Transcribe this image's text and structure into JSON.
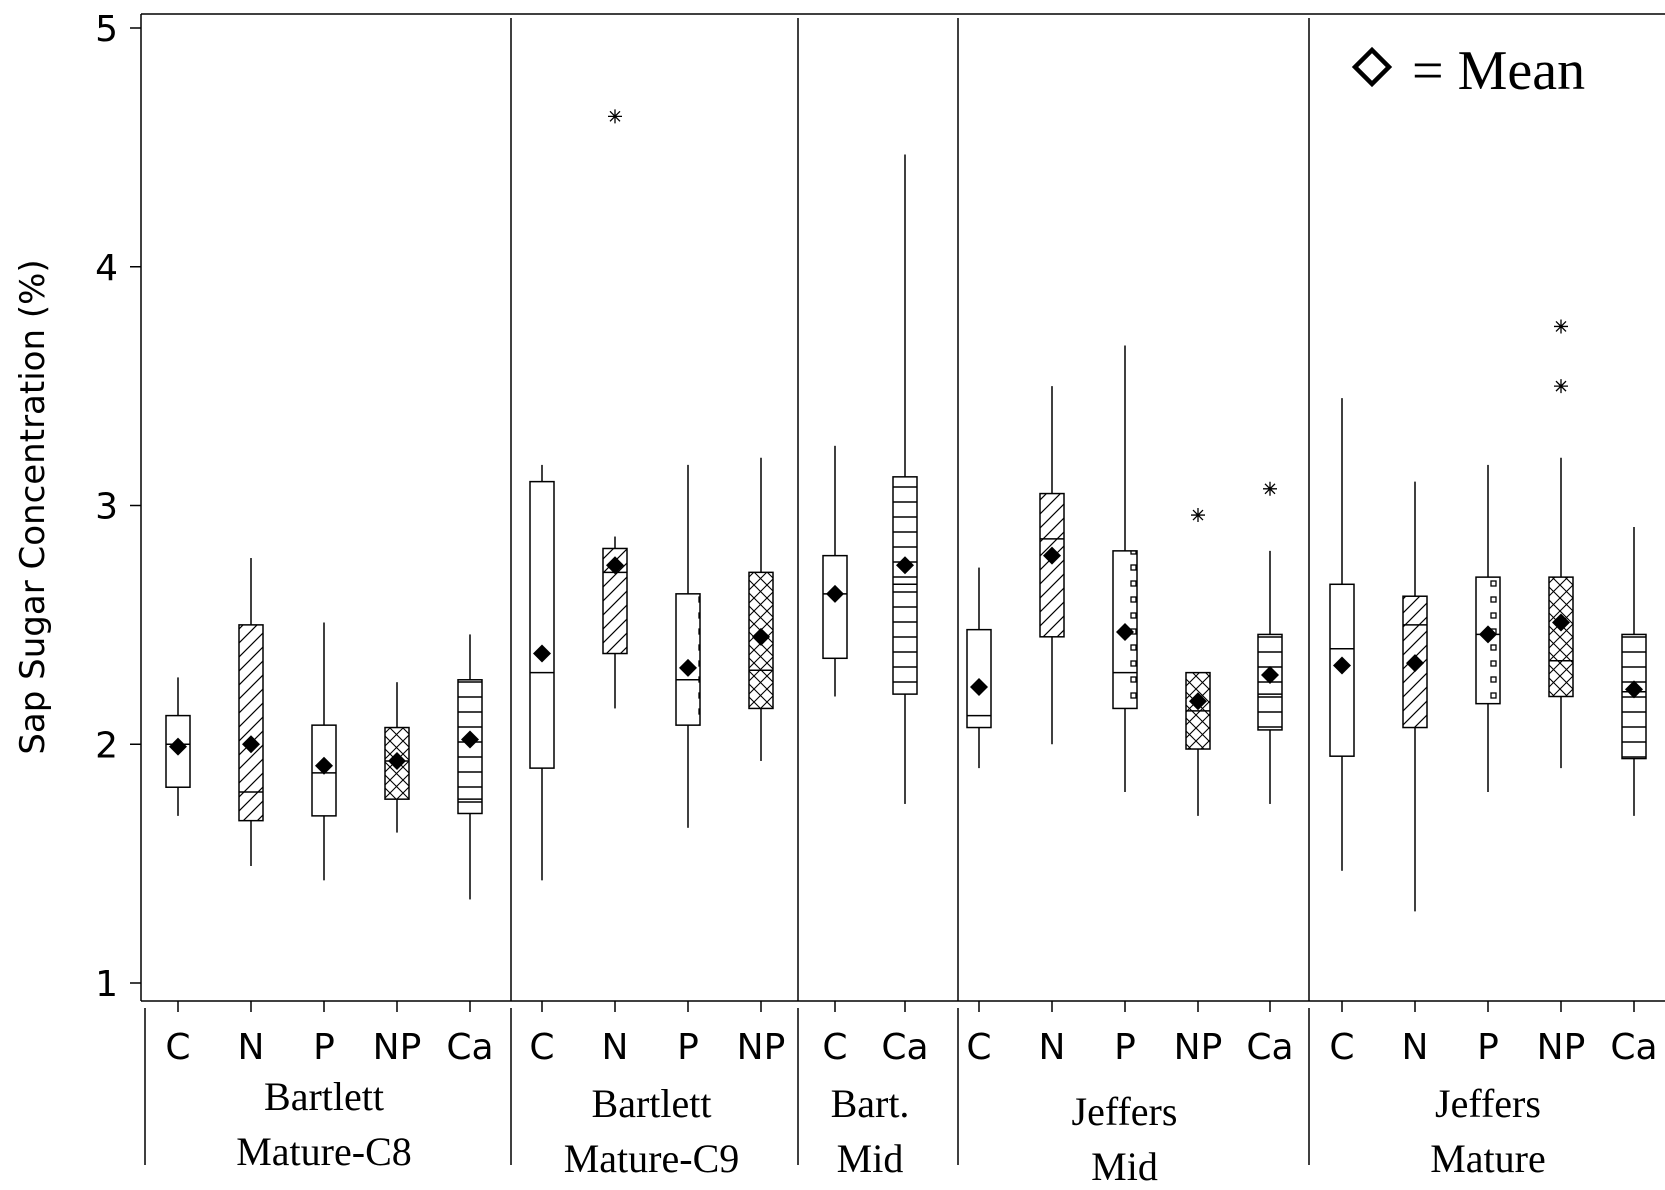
{
  "chart_data": {
    "type": "box",
    "ylabel": "Sap Sugar Concentration (%)",
    "ylim": [
      1,
      5
    ],
    "yticks": [
      1,
      2,
      3,
      4,
      5
    ],
    "legend": {
      "symbol": "◇",
      "text": "= Mean",
      "placement": "top-right"
    },
    "groups": [
      {
        "name_lines": [
          "Bartlett",
          "Mature-C8"
        ],
        "boxes": [
          {
            "label": "C",
            "pattern": "none",
            "min": 1.7,
            "q1": 1.82,
            "median": 2.0,
            "q3": 2.12,
            "max": 2.28,
            "mean": 1.99,
            "outliers": []
          },
          {
            "label": "N",
            "pattern": "diag",
            "min": 1.49,
            "q1": 1.68,
            "median": 1.8,
            "q3": 2.5,
            "max": 2.78,
            "mean": 2.0,
            "outliers": []
          },
          {
            "label": "P",
            "pattern": "dots",
            "min": 1.43,
            "q1": 1.7,
            "median": 1.88,
            "q3": 2.08,
            "max": 2.51,
            "mean": 1.91,
            "outliers": []
          },
          {
            "label": "NP",
            "pattern": "cross",
            "min": 1.63,
            "q1": 1.77,
            "median": 1.93,
            "q3": 2.07,
            "max": 2.26,
            "mean": 1.93,
            "outliers": []
          },
          {
            "label": "Ca",
            "pattern": "hlines",
            "min": 1.35,
            "q1": 1.71,
            "median": 1.77,
            "q3": 2.27,
            "max": 2.46,
            "mean": 2.02,
            "outliers": []
          }
        ]
      },
      {
        "name_lines": [
          "Bartlett",
          "Mature-C9"
        ],
        "boxes": [
          {
            "label": "C",
            "pattern": "none",
            "min": 1.43,
            "q1": 1.9,
            "median": 2.3,
            "q3": 3.1,
            "max": 3.17,
            "mean": 2.38,
            "outliers": []
          },
          {
            "label": "N",
            "pattern": "diag",
            "min": 2.15,
            "q1": 2.38,
            "median": 2.72,
            "q3": 2.82,
            "max": 2.87,
            "mean": 2.75,
            "outliers": [
              4.63
            ]
          },
          {
            "label": "P",
            "pattern": "dots",
            "min": 1.65,
            "q1": 2.08,
            "median": 2.27,
            "q3": 2.63,
            "max": 3.17,
            "mean": 2.32,
            "outliers": []
          },
          {
            "label": "NP",
            "pattern": "cross",
            "min": 1.93,
            "q1": 2.15,
            "median": 2.31,
            "q3": 2.72,
            "max": 3.2,
            "mean": 2.45,
            "outliers": []
          }
        ]
      },
      {
        "name_lines": [
          "Bart.",
          "Mid"
        ],
        "boxes": [
          {
            "label": "C",
            "pattern": "none",
            "min": 2.2,
            "q1": 2.36,
            "median": 2.63,
            "q3": 2.79,
            "max": 3.25,
            "mean": 2.63,
            "outliers": []
          },
          {
            "label": "Ca",
            "pattern": "hlines",
            "min": 1.75,
            "q1": 2.21,
            "median": 2.67,
            "q3": 3.12,
            "max": 4.47,
            "mean": 2.75,
            "outliers": []
          }
        ]
      },
      {
        "name_lines": [
          "Jeffers",
          "Mid"
        ],
        "boxes": [
          {
            "label": "C",
            "pattern": "none",
            "min": 1.9,
            "q1": 2.07,
            "median": 2.12,
            "q3": 2.48,
            "max": 2.74,
            "mean": 2.24,
            "outliers": []
          },
          {
            "label": "N",
            "pattern": "diag",
            "min": 2.0,
            "q1": 2.45,
            "median": 2.86,
            "q3": 3.05,
            "max": 3.5,
            "mean": 2.79,
            "outliers": []
          },
          {
            "label": "P",
            "pattern": "dots",
            "min": 1.8,
            "q1": 2.15,
            "median": 2.3,
            "q3": 2.81,
            "max": 3.67,
            "mean": 2.47,
            "outliers": []
          },
          {
            "label": "NP",
            "pattern": "cross",
            "min": 1.7,
            "q1": 1.98,
            "median": 2.14,
            "q3": 2.3,
            "max": 2.3,
            "mean": 2.18,
            "outliers": [
              2.96
            ]
          },
          {
            "label": "Ca",
            "pattern": "hlines",
            "min": 1.75,
            "q1": 2.06,
            "median": 2.21,
            "q3": 2.46,
            "max": 2.81,
            "mean": 2.29,
            "outliers": [
              3.07
            ]
          }
        ]
      },
      {
        "name_lines": [
          "Jeffers",
          "Mature"
        ],
        "boxes": [
          {
            "label": "C",
            "pattern": "none",
            "min": 1.47,
            "q1": 1.95,
            "median": 2.4,
            "q3": 2.67,
            "max": 3.45,
            "mean": 2.33,
            "outliers": []
          },
          {
            "label": "N",
            "pattern": "diag",
            "min": 1.3,
            "q1": 2.07,
            "median": 2.5,
            "q3": 2.62,
            "max": 3.1,
            "mean": 2.34,
            "outliers": []
          },
          {
            "label": "P",
            "pattern": "dots",
            "min": 1.8,
            "q1": 2.17,
            "median": 2.46,
            "q3": 2.7,
            "max": 3.17,
            "mean": 2.46,
            "outliers": []
          },
          {
            "label": "NP",
            "pattern": "cross",
            "min": 1.9,
            "q1": 2.2,
            "median": 2.35,
            "q3": 2.7,
            "max": 3.2,
            "mean": 2.51,
            "outliers": [
              3.5,
              3.75
            ]
          },
          {
            "label": "Ca",
            "pattern": "hlines",
            "min": 1.7,
            "q1": 1.94,
            "median": 2.22,
            "q3": 2.46,
            "max": 2.91,
            "mean": 2.23,
            "outliers": []
          }
        ]
      }
    ]
  }
}
